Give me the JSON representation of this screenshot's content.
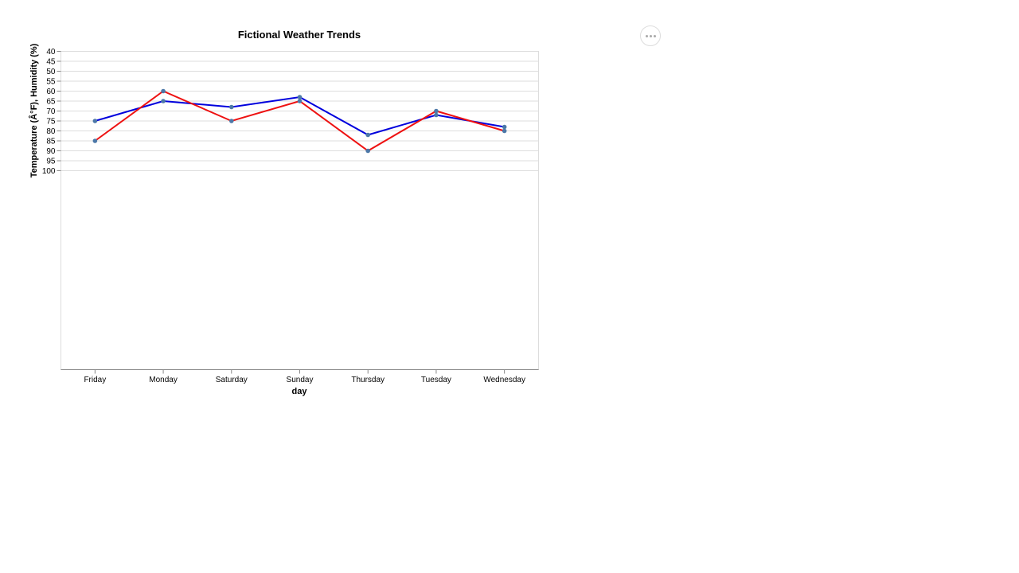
{
  "actions_menu": {
    "icon": "more-horizontal-icon"
  },
  "chart_data": {
    "type": "line",
    "title": "Fictional Weather Trends",
    "xlabel": "day",
    "ylabel": "Temperature (Â°F), Humidity (%)",
    "categories": [
      "Friday",
      "Monday",
      "Saturday",
      "Sunday",
      "Thursday",
      "Tuesday",
      "Wednesday"
    ],
    "y_ticks": [
      40,
      45,
      50,
      55,
      60,
      65,
      70,
      75,
      80,
      85,
      90,
      95,
      100
    ],
    "ylim": [
      40,
      100
    ],
    "y_reversed": true,
    "grid": true,
    "series": [
      {
        "color": "#0000dd",
        "values": [
          75,
          65,
          68,
          63,
          82,
          72,
          78
        ]
      },
      {
        "color": "#ee1111",
        "values": [
          85,
          60,
          75,
          65,
          90,
          70,
          80
        ]
      }
    ],
    "point_color": "#4c78a8"
  }
}
